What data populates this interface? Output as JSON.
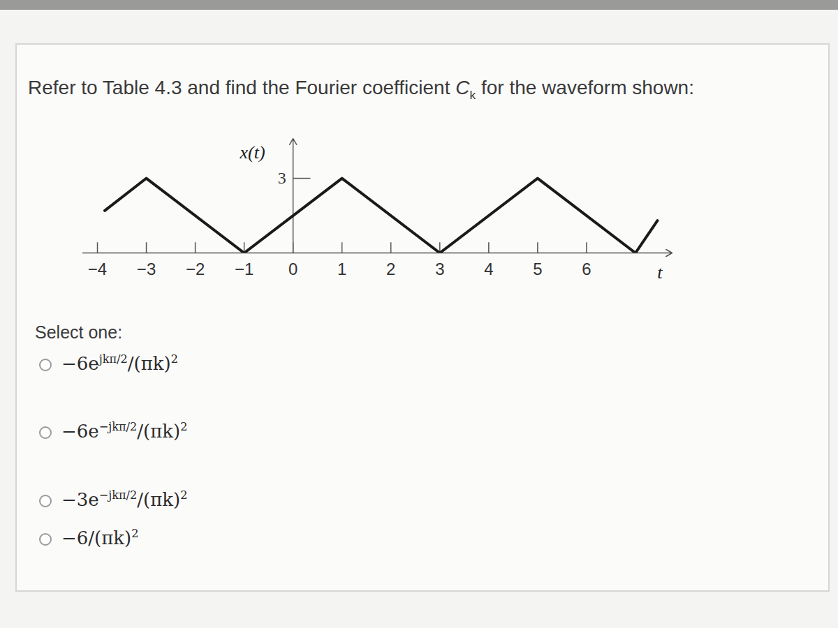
{
  "question": [
    {
      "text": "Refer to Table 4.3 and find the Fourier coefficient "
    },
    {
      "italic": "C"
    },
    {
      "sub": "k"
    },
    {
      "text": " for the waveform shown:"
    }
  ],
  "chart_data": {
    "type": "line",
    "x_label": "x(t)",
    "t_label": "t",
    "x": [
      -3.85,
      -3,
      -1,
      1,
      3,
      5,
      7,
      7.45
    ],
    "values": [
      1.7,
      3,
      0,
      3,
      0,
      3,
      0,
      1.3
    ],
    "color": "#1a1a1a",
    "xlim": [
      -4.3,
      7.75
    ],
    "xticks": [
      -4,
      -3,
      -2,
      -1,
      0,
      1,
      2,
      3,
      4,
      5,
      6
    ],
    "ylim": [
      0,
      4.6
    ],
    "yticks": [
      3
    ]
  },
  "prompt": "Select one:",
  "options": [
    [
      {
        "text": "−6e"
      },
      {
        "sup": "jkπ/2"
      },
      {
        "text": "/(πk)"
      },
      {
        "sup": "2"
      }
    ],
    [
      {
        "text": "−6e"
      },
      {
        "sup": "−jkπ/2"
      },
      {
        "text": "/(πk)"
      },
      {
        "sup": "2"
      }
    ],
    [
      {
        "text": "−3e"
      },
      {
        "sup": "−jkπ/2"
      },
      {
        "text": "/(πk)"
      },
      {
        "sup": "2"
      }
    ],
    [
      {
        "text": "−6/(πk)"
      },
      {
        "sup": "2"
      }
    ]
  ]
}
